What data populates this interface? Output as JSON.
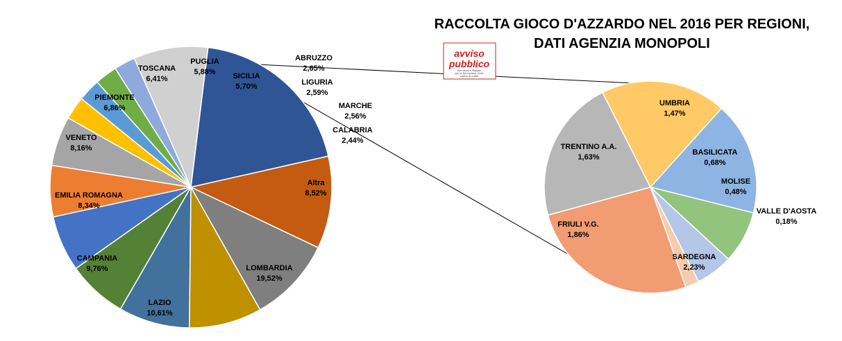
{
  "title": {
    "line1": "RACCOLTA GIOCO D'AZZARDO NEL 2016 PER REGIONI,",
    "line2": "DATI AGENZIA MONOPOLI"
  },
  "logo": {
    "word1": "avviso",
    "word2": "pubblico",
    "tagline1": "Enti locali e Regioni",
    "tagline2": "per la formazione civile",
    "tagline3": "contro le mafie",
    "color": "#cc1f1f"
  },
  "chart_data": [
    {
      "type": "pie",
      "name": "main",
      "slices": [
        {
          "label": "LOMBARDIA",
          "value": 19.52,
          "display": "19,52%",
          "color": "#2f5597"
        },
        {
          "label": "LAZIO",
          "value": 10.61,
          "display": "10,61%",
          "color": "#c55a11"
        },
        {
          "label": "CAMPANIA",
          "value": 9.76,
          "display": "9,76%",
          "color": "#7f7f7f"
        },
        {
          "label": "EMILIA ROMAGNA",
          "value": 8.34,
          "display": "8,34%",
          "color": "#bf9000"
        },
        {
          "label": "VENETO",
          "value": 8.16,
          "display": "8,16%",
          "color": "#41719c"
        },
        {
          "label": "PIEMONTE",
          "value": 6.86,
          "display": "6,86%",
          "color": "#538135"
        },
        {
          "label": "TOSCANA",
          "value": 6.41,
          "display": "6,41%",
          "color": "#4472c4"
        },
        {
          "label": "PUGLIA",
          "value": 5.88,
          "display": "5,88%",
          "color": "#ed7d31"
        },
        {
          "label": "SICILIA",
          "value": 5.7,
          "display": "5,70%",
          "color": "#a5a5a5"
        },
        {
          "label": "ABRUZZO",
          "value": 2.65,
          "display": "2,65%",
          "color": "#ffc000"
        },
        {
          "label": "LIGURIA",
          "value": 2.59,
          "display": "2,59%",
          "color": "#5b9bd5"
        },
        {
          "label": "MARCHE",
          "value": 2.56,
          "display": "2,56%",
          "color": "#70ad47"
        },
        {
          "label": "CALABRIA",
          "value": 2.44,
          "display": "2,44%",
          "color": "#8ea9db"
        },
        {
          "label": "Altra",
          "value": 8.52,
          "display": "8,52%",
          "color": "#d0d0d0"
        }
      ]
    },
    {
      "type": "pie",
      "name": "secondary",
      "slices": [
        {
          "label": "UMBRIA",
          "value": 1.47,
          "display": "1,47%",
          "color": "#8eb4e3"
        },
        {
          "label": "BASILICATA",
          "value": 0.68,
          "display": "0,68%",
          "color": "#93c47d"
        },
        {
          "label": "MOLISE",
          "value": 0.48,
          "display": "0,48%",
          "color": "#b4c7e7"
        },
        {
          "label": "VALLE D'AOSTA",
          "value": 0.18,
          "display": "0,18%",
          "color": "#f8cbad"
        },
        {
          "label": "SARDEGNA",
          "value": 2.23,
          "display": "2,23%",
          "color": "#f19c72"
        },
        {
          "label": "FRIULI V.G.",
          "value": 1.86,
          "display": "1,86%",
          "color": "#b7b7b7"
        },
        {
          "label": "TRENTINO A.A.",
          "value": 1.63,
          "display": "1,63%",
          "color": "#ffc966"
        }
      ]
    }
  ]
}
